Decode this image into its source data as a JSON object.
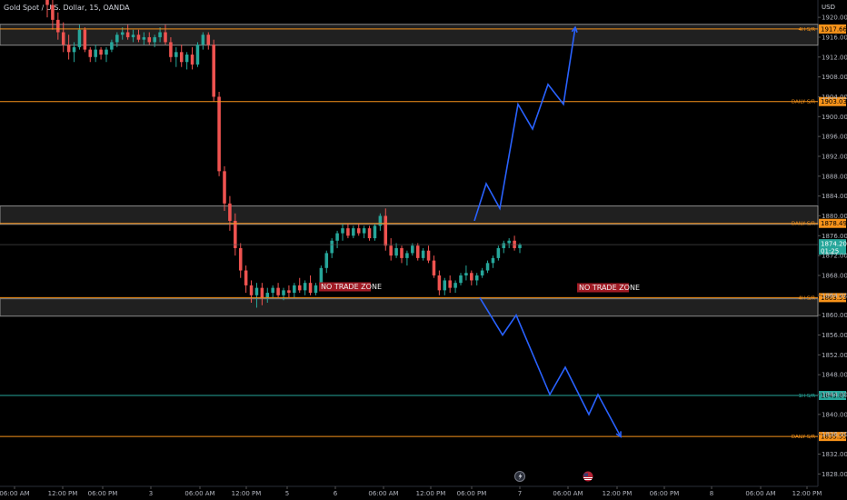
{
  "header": {
    "title": "Gold Spot / U.S. Dollar, 15, OANDA",
    "currency": "USD"
  },
  "colors": {
    "background": "#000000",
    "bull": "#26a69a",
    "bear": "#ef5350",
    "orange": "#f7931a",
    "green": "#26a69a",
    "blue": "#2962ff",
    "zone": "#3a3a3a",
    "zone_label_bg": "#a01a24"
  },
  "chart_data": {
    "type": "candlestick",
    "title": "Gold Spot / U.S. Dollar, 15, OANDA",
    "y_unit": "USD",
    "ylim": [
      1825.5,
      1923.5
    ],
    "y_ticks": [
      1920.0,
      1916.0,
      1912.0,
      1908.0,
      1904.0,
      1900.0,
      1896.0,
      1892.0,
      1888.0,
      1884.0,
      1880.0,
      1876.0,
      1872.0,
      1868.0,
      1864.0,
      1860.0,
      1856.0,
      1852.0,
      1848.0,
      1844.0,
      1840.0,
      1836.0,
      1832.0,
      1828.0
    ],
    "x_ticks": [
      "06:00 AM",
      "12:00 PM",
      "06:00 PM",
      "3",
      "06:00 AM",
      "12:00 PM",
      "5",
      "6",
      "06:00 AM",
      "12:00 PM",
      "06:00 PM",
      "7",
      "06:00 AM",
      "12:00 PM",
      "06:00 PM",
      "8",
      "06:00 AM",
      "12:00 PM"
    ],
    "current_price": {
      "price": "1874.205",
      "countdown": "01:25",
      "value": 1874.205
    },
    "levels": [
      {
        "name": "4H S/R",
        "price": "1917.665",
        "value": 1917.665,
        "color": "orange"
      },
      {
        "name": "DAILY S/R",
        "price": "1903.035",
        "value": 1903.035,
        "color": "orange"
      },
      {
        "name": "DAILY S/R",
        "price": "1878.490",
        "value": 1878.49,
        "color": "orange"
      },
      {
        "name": "4H S/R",
        "price": "1863.530",
        "value": 1863.53,
        "color": "orange"
      },
      {
        "name": "1H S/R",
        "price": "1843.815",
        "value": 1843.815,
        "color": "green"
      },
      {
        "name": "DAILY S/R",
        "price": "1835.550",
        "value": 1835.55,
        "color": "orange"
      }
    ],
    "zones": [
      {
        "low": 1914.4,
        "high": 1918.6,
        "label": ""
      },
      {
        "low": 1878.3,
        "high": 1882.0,
        "label": ""
      },
      {
        "low": 1859.8,
        "high": 1863.3,
        "label": ""
      }
    ],
    "zone_labels": [
      "NO TRADE ZONE",
      "NO TRADE ZONE"
    ],
    "projection_up": [
      1879.0,
      1886.5,
      1881.5,
      1902.5,
      1897.5,
      1906.5,
      1902.5,
      1918.0
    ],
    "projection_down": [
      1863.5,
      1856.0,
      1860.0,
      1844.0,
      1849.5,
      1840.0,
      1844.0,
      1835.5
    ],
    "event_markers": [
      "lightning-icon",
      "us-flag-icon"
    ],
    "ohlc": [
      [
        1926.0,
        1928.0,
        1920.0,
        1922.5
      ],
      [
        1922.5,
        1924.0,
        1917.5,
        1919.5
      ],
      [
        1919.5,
        1921.0,
        1915.5,
        1917.0
      ],
      [
        1917.0,
        1919.0,
        1913.0,
        1914.5
      ],
      [
        1914.5,
        1916.5,
        1911.5,
        1913.0
      ],
      [
        1913.0,
        1915.0,
        1911.0,
        1914.0
      ],
      [
        1914.0,
        1918.5,
        1913.5,
        1917.5
      ],
      [
        1917.5,
        1918.0,
        1913.0,
        1913.5
      ],
      [
        1913.5,
        1914.0,
        1911.0,
        1912.0
      ],
      [
        1912.0,
        1914.5,
        1911.0,
        1913.5
      ],
      [
        1913.5,
        1914.0,
        1911.5,
        1912.5
      ],
      [
        1912.5,
        1914.0,
        1911.0,
        1913.5
      ],
      [
        1913.5,
        1915.5,
        1913.0,
        1915.0
      ],
      [
        1915.0,
        1917.0,
        1914.0,
        1916.5
      ],
      [
        1916.5,
        1918.0,
        1915.5,
        1917.0
      ],
      [
        1917.0,
        1918.5,
        1915.5,
        1916.0
      ],
      [
        1916.0,
        1917.5,
        1915.0,
        1916.5
      ],
      [
        1916.5,
        1917.5,
        1915.0,
        1915.5
      ],
      [
        1915.5,
        1917.0,
        1914.5,
        1916.0
      ],
      [
        1916.0,
        1917.0,
        1914.5,
        1915.0
      ],
      [
        1915.0,
        1916.5,
        1914.0,
        1916.0
      ],
      [
        1916.0,
        1918.0,
        1915.0,
        1917.0
      ],
      [
        1917.0,
        1918.5,
        1914.5,
        1915.0
      ],
      [
        1915.0,
        1916.0,
        1911.0,
        1912.0
      ],
      [
        1912.0,
        1914.0,
        1910.0,
        1913.0
      ],
      [
        1913.0,
        1914.5,
        1910.0,
        1911.0
      ],
      [
        1911.0,
        1913.0,
        1909.5,
        1912.5
      ],
      [
        1912.5,
        1914.0,
        1909.5,
        1910.5
      ],
      [
        1910.5,
        1915.0,
        1910.0,
        1914.5
      ],
      [
        1914.5,
        1917.0,
        1913.5,
        1916.5
      ],
      [
        1916.5,
        1917.0,
        1913.5,
        1914.5
      ],
      [
        1914.5,
        1915.5,
        1903.0,
        1904.0
      ],
      [
        1904.0,
        1905.0,
        1888.0,
        1889.0
      ],
      [
        1889.0,
        1890.0,
        1881.0,
        1882.5
      ],
      [
        1882.5,
        1884.0,
        1877.0,
        1879.0
      ],
      [
        1879.0,
        1880.5,
        1872.0,
        1873.5
      ],
      [
        1873.5,
        1874.5,
        1867.5,
        1869.0
      ],
      [
        1869.0,
        1870.0,
        1864.5,
        1866.0
      ],
      [
        1866.0,
        1867.0,
        1862.5,
        1864.0
      ],
      [
        1864.0,
        1866.5,
        1861.5,
        1865.5
      ],
      [
        1865.5,
        1866.5,
        1862.0,
        1863.5
      ],
      [
        1863.5,
        1865.5,
        1862.5,
        1864.5
      ],
      [
        1864.5,
        1866.0,
        1863.5,
        1865.5
      ],
      [
        1865.5,
        1866.5,
        1863.5,
        1864.0
      ],
      [
        1864.0,
        1865.5,
        1863.0,
        1865.0
      ],
      [
        1865.0,
        1866.0,
        1863.5,
        1864.5
      ],
      [
        1864.5,
        1866.5,
        1863.5,
        1866.0
      ],
      [
        1866.0,
        1867.5,
        1864.5,
        1865.0
      ],
      [
        1865.0,
        1867.0,
        1864.0,
        1866.5
      ],
      [
        1866.5,
        1868.0,
        1864.0,
        1864.5
      ],
      [
        1864.5,
        1866.5,
        1864.0,
        1866.0
      ],
      [
        1866.0,
        1870.0,
        1865.5,
        1869.5
      ],
      [
        1869.5,
        1873.0,
        1868.5,
        1872.5
      ],
      [
        1872.5,
        1875.5,
        1871.5,
        1875.0
      ],
      [
        1875.0,
        1877.0,
        1873.5,
        1876.5
      ],
      [
        1876.5,
        1878.5,
        1875.0,
        1877.5
      ],
      [
        1877.5,
        1878.5,
        1875.5,
        1876.0
      ],
      [
        1876.0,
        1878.0,
        1875.5,
        1877.5
      ],
      [
        1877.5,
        1878.5,
        1876.0,
        1876.5
      ],
      [
        1876.5,
        1878.0,
        1875.5,
        1877.5
      ],
      [
        1877.5,
        1878.0,
        1875.0,
        1875.5
      ],
      [
        1875.5,
        1878.5,
        1875.0,
        1878.0
      ],
      [
        1878.0,
        1880.5,
        1877.0,
        1880.0
      ],
      [
        1880.0,
        1881.5,
        1873.0,
        1874.0
      ],
      [
        1874.0,
        1875.5,
        1871.0,
        1872.0
      ],
      [
        1872.0,
        1874.5,
        1871.5,
        1873.5
      ],
      [
        1873.5,
        1874.0,
        1870.5,
        1871.5
      ],
      [
        1871.5,
        1873.0,
        1870.0,
        1872.5
      ],
      [
        1872.5,
        1874.5,
        1872.0,
        1874.0
      ],
      [
        1874.0,
        1874.5,
        1871.0,
        1871.5
      ],
      [
        1871.5,
        1873.5,
        1871.0,
        1873.0
      ],
      [
        1873.0,
        1874.0,
        1870.5,
        1871.0
      ],
      [
        1871.0,
        1872.0,
        1867.5,
        1868.0
      ],
      [
        1868.0,
        1869.0,
        1864.0,
        1865.0
      ],
      [
        1865.0,
        1867.5,
        1864.0,
        1867.0
      ],
      [
        1867.0,
        1868.0,
        1864.5,
        1865.5
      ],
      [
        1865.5,
        1867.0,
        1864.5,
        1866.5
      ],
      [
        1866.5,
        1868.5,
        1866.0,
        1868.0
      ],
      [
        1868.0,
        1870.0,
        1867.0,
        1868.5
      ],
      [
        1868.5,
        1869.0,
        1866.0,
        1867.0
      ],
      [
        1867.0,
        1868.5,
        1866.0,
        1868.0
      ],
      [
        1868.0,
        1869.5,
        1867.5,
        1869.0
      ],
      [
        1869.0,
        1871.0,
        1868.5,
        1870.5
      ],
      [
        1870.5,
        1872.0,
        1869.5,
        1871.5
      ],
      [
        1871.5,
        1874.0,
        1871.0,
        1873.5
      ],
      [
        1873.5,
        1875.0,
        1872.5,
        1874.5
      ],
      [
        1874.5,
        1875.5,
        1873.5,
        1875.0
      ],
      [
        1875.0,
        1876.0,
        1873.0,
        1873.5
      ],
      [
        1873.5,
        1874.5,
        1872.5,
        1874.205
      ]
    ]
  }
}
